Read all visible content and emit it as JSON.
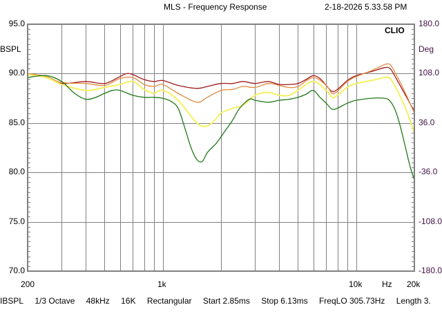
{
  "header": {
    "title": "MLS - Frequency Response",
    "timestamp": "2-18-2026 5.33.58 PM"
  },
  "axes": {
    "left_unit": "BSPL",
    "right_unit": "Deg",
    "left_ticks": [
      "95.0",
      "90.0",
      "85.0",
      "80.0",
      "75.0",
      "70.0"
    ],
    "right_ticks": [
      "180.0",
      "108.0",
      "36.0",
      "-36.0",
      "-108.0",
      "-180.0"
    ],
    "x_ticks": [
      "200",
      "1k",
      "10k",
      "Hz",
      "20k"
    ],
    "brand": "CLIO"
  },
  "footer": {
    "items": [
      "IBSPL",
      "1/3 Octave",
      "48kHz",
      "16K",
      "Rectangular",
      "Start 2.85ms",
      "Stop 6.13ms",
      "FreqLO 305.73Hz",
      "Length 3."
    ]
  },
  "colors": {
    "grid": "#808080",
    "frame": "#808080",
    "red": "#a01818",
    "orange": "#e08a40",
    "yellow": "#f4f060",
    "green": "#207818",
    "right_axis_text": "#401040"
  },
  "chart_data": {
    "type": "line",
    "title": "MLS - Frequency Response",
    "xlabel": "Hz",
    "ylabel": "dBSPL",
    "y2label": "Deg",
    "xscale": "log",
    "xlim": [
      200,
      20000
    ],
    "ylim": [
      70,
      95
    ],
    "y2lim": [
      -180,
      180
    ],
    "grid": true,
    "x_grid": [
      300,
      400,
      500,
      600,
      700,
      800,
      900,
      1000,
      2000,
      3000,
      4000,
      5000,
      6000,
      7000,
      8000,
      9000,
      10000
    ],
    "y_grid": [
      70,
      75,
      80,
      85,
      90,
      95
    ],
    "series": [
      {
        "name": "red",
        "color": "#a01818",
        "points": [
          [
            200,
            89.9
          ],
          [
            250,
            89.6
          ],
          [
            300,
            89.0
          ],
          [
            400,
            89.2
          ],
          [
            500,
            89.0
          ],
          [
            600,
            89.7
          ],
          [
            650,
            90.0
          ],
          [
            700,
            89.9
          ],
          [
            800,
            89.4
          ],
          [
            900,
            89.2
          ],
          [
            1000,
            89.3
          ],
          [
            1200,
            88.8
          ],
          [
            1500,
            88.5
          ],
          [
            1700,
            88.7
          ],
          [
            2000,
            89.0
          ],
          [
            2300,
            89.0
          ],
          [
            2600,
            89.2
          ],
          [
            3000,
            89.0
          ],
          [
            3500,
            89.2
          ],
          [
            4000,
            88.9
          ],
          [
            4500,
            88.9
          ],
          [
            5000,
            89.0
          ],
          [
            5500,
            89.4
          ],
          [
            6000,
            89.8
          ],
          [
            6500,
            89.5
          ],
          [
            7000,
            88.8
          ],
          [
            7500,
            88.2
          ],
          [
            8000,
            88.4
          ],
          [
            9000,
            89.3
          ],
          [
            10000,
            89.8
          ],
          [
            12000,
            90.2
          ],
          [
            14000,
            90.6
          ],
          [
            15000,
            90.5
          ],
          [
            16000,
            89.6
          ],
          [
            18000,
            87.8
          ],
          [
            20000,
            86.2
          ]
        ]
      },
      {
        "name": "orange",
        "color": "#e08a40",
        "points": [
          [
            200,
            90.0
          ],
          [
            250,
            89.7
          ],
          [
            300,
            89.1
          ],
          [
            400,
            89.0
          ],
          [
            500,
            88.8
          ],
          [
            600,
            89.5
          ],
          [
            700,
            89.6
          ],
          [
            800,
            88.9
          ],
          [
            900,
            88.7
          ],
          [
            1000,
            88.9
          ],
          [
            1200,
            88.0
          ],
          [
            1500,
            87.1
          ],
          [
            1700,
            87.6
          ],
          [
            2000,
            88.3
          ],
          [
            2300,
            88.4
          ],
          [
            2600,
            88.7
          ],
          [
            3000,
            88.6
          ],
          [
            3500,
            89.0
          ],
          [
            4000,
            88.8
          ],
          [
            4500,
            88.6
          ],
          [
            5000,
            88.7
          ],
          [
            6000,
            89.6
          ],
          [
            7000,
            88.8
          ],
          [
            7500,
            88.0
          ],
          [
            8000,
            88.2
          ],
          [
            9000,
            89.2
          ],
          [
            10000,
            89.7
          ],
          [
            12000,
            90.3
          ],
          [
            14000,
            90.9
          ],
          [
            15000,
            90.9
          ],
          [
            16000,
            90.0
          ],
          [
            18000,
            88.0
          ],
          [
            20000,
            86.0
          ]
        ]
      },
      {
        "name": "yellow",
        "color": "#f4f060",
        "points": [
          [
            200,
            89.9
          ],
          [
            250,
            89.6
          ],
          [
            300,
            88.9
          ],
          [
            400,
            88.3
          ],
          [
            500,
            88.6
          ],
          [
            600,
            88.9
          ],
          [
            700,
            89.2
          ],
          [
            800,
            88.4
          ],
          [
            900,
            88.0
          ],
          [
            1000,
            88.3
          ],
          [
            1200,
            87.3
          ],
          [
            1500,
            85.0
          ],
          [
            1700,
            84.7
          ],
          [
            1900,
            85.5
          ],
          [
            2000,
            86.0
          ],
          [
            2300,
            86.5
          ],
          [
            2600,
            86.8
          ],
          [
            3000,
            87.8
          ],
          [
            3500,
            88.1
          ],
          [
            4000,
            87.8
          ],
          [
            4500,
            87.8
          ],
          [
            5000,
            88.3
          ],
          [
            6000,
            89.2
          ],
          [
            7000,
            88.3
          ],
          [
            7500,
            87.6
          ],
          [
            8000,
            87.8
          ],
          [
            9000,
            88.6
          ],
          [
            10000,
            89.0
          ],
          [
            12000,
            89.3
          ],
          [
            14000,
            89.6
          ],
          [
            15000,
            89.5
          ],
          [
            16000,
            88.6
          ],
          [
            18000,
            86.5
          ],
          [
            20000,
            84.0
          ]
        ]
      },
      {
        "name": "green",
        "color": "#207818",
        "points": [
          [
            200,
            89.6
          ],
          [
            250,
            89.8
          ],
          [
            300,
            89.2
          ],
          [
            350,
            88.0
          ],
          [
            400,
            87.4
          ],
          [
            450,
            87.6
          ],
          [
            500,
            88.0
          ],
          [
            550,
            88.3
          ],
          [
            600,
            88.3
          ],
          [
            700,
            87.8
          ],
          [
            800,
            87.6
          ],
          [
            900,
            87.6
          ],
          [
            1000,
            87.5
          ],
          [
            1100,
            87.2
          ],
          [
            1200,
            86.5
          ],
          [
            1300,
            84.5
          ],
          [
            1400,
            82.5
          ],
          [
            1500,
            81.3
          ],
          [
            1600,
            81.1
          ],
          [
            1700,
            82.0
          ],
          [
            1900,
            83.0
          ],
          [
            2100,
            84.2
          ],
          [
            2300,
            85.3
          ],
          [
            2500,
            86.5
          ],
          [
            2800,
            87.4
          ],
          [
            3000,
            87.3
          ],
          [
            3500,
            87.1
          ],
          [
            4000,
            87.3
          ],
          [
            4500,
            87.4
          ],
          [
            5000,
            87.6
          ],
          [
            5500,
            87.9
          ],
          [
            6000,
            88.3
          ],
          [
            6500,
            87.6
          ],
          [
            7000,
            87.0
          ],
          [
            7500,
            86.4
          ],
          [
            8000,
            86.5
          ],
          [
            9000,
            87.0
          ],
          [
            10000,
            87.3
          ],
          [
            12000,
            87.5
          ],
          [
            14000,
            87.5
          ],
          [
            15000,
            87.2
          ],
          [
            16000,
            86.2
          ],
          [
            17000,
            84.5
          ],
          [
            18000,
            82.5
          ],
          [
            19000,
            80.6
          ],
          [
            20000,
            79.2
          ]
        ]
      }
    ]
  }
}
